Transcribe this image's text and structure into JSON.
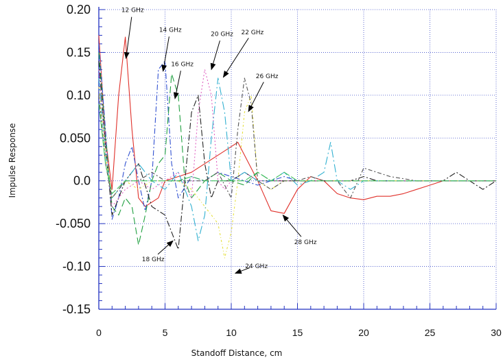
{
  "chart_data": {
    "type": "line",
    "xlabel": "Standoff Distance, cm",
    "ylabel": "Impulse Response",
    "xlim": [
      0,
      30
    ],
    "ylim": [
      -0.15,
      0.2
    ],
    "grid": true,
    "x_ticks": [
      "0",
      "5",
      "10",
      "15",
      "20",
      "25",
      "30"
    ],
    "y_ticks": [
      "-0.15",
      "-0.10",
      "-0.050",
      "0.0",
      "0.050",
      "0.10",
      "0.15",
      "0.20"
    ],
    "series": [
      {
        "name": "12 GHz",
        "color": "#e0302a",
        "dash": "solid",
        "x": [
          0,
          0.5,
          1,
          1.5,
          2,
          2.5,
          3,
          3.5,
          4,
          4.5,
          5,
          6,
          7,
          8,
          9,
          10,
          10.5,
          11,
          12,
          13,
          14,
          15,
          16,
          17,
          18,
          19,
          20,
          21,
          22,
          23,
          24,
          25,
          26,
          27,
          28,
          29,
          30
        ],
        "y": [
          0.17,
          0.05,
          -0.01,
          0.1,
          0.168,
          0.06,
          -0.02,
          -0.03,
          -0.025,
          -0.02,
          0.0,
          0.005,
          0.01,
          0.02,
          0.03,
          0.04,
          0.045,
          0.03,
          0.0,
          -0.035,
          -0.038,
          -0.01,
          0.005,
          0.0,
          -0.015,
          -0.02,
          -0.022,
          -0.018,
          -0.018,
          -0.015,
          -0.01,
          -0.005,
          0.0,
          0.0,
          0.0,
          0.0,
          0.0
        ]
      },
      {
        "name": "14 GHz",
        "color": "#3050d0",
        "dash": "8,3,2,3",
        "x": [
          0,
          0.5,
          1,
          1.5,
          2,
          2.5,
          3,
          3.5,
          4,
          4.5,
          5,
          5.5,
          6,
          7,
          8,
          9,
          10,
          11,
          12,
          13,
          14,
          15,
          16,
          18,
          20,
          22,
          24,
          26,
          28,
          30
        ],
        "y": [
          0.16,
          0.06,
          -0.045,
          -0.02,
          0.02,
          0.04,
          0.0,
          -0.035,
          0.0,
          0.13,
          0.14,
          0.02,
          -0.02,
          0.005,
          0.0,
          0.01,
          0.005,
          0.0,
          -0.005,
          0.0,
          0.005,
          0.0,
          0.0,
          0.0,
          0.0,
          0.0,
          0.0,
          0.0,
          0.0,
          0.0
        ]
      },
      {
        "name": "16 GHz",
        "color": "#20a040",
        "dash": "10,5",
        "x": [
          0,
          0.5,
          1,
          1.5,
          2,
          2.5,
          3,
          3.5,
          4,
          4.5,
          5,
          5.5,
          6,
          6.5,
          7,
          8,
          9,
          10,
          11,
          12,
          13,
          14,
          15,
          17,
          19,
          21,
          23,
          25,
          27,
          30
        ],
        "y": [
          0.15,
          0.05,
          -0.03,
          -0.04,
          -0.02,
          -0.03,
          -0.075,
          -0.04,
          0.0,
          0.02,
          0.03,
          0.125,
          0.1,
          0.0,
          -0.02,
          0.0,
          0.01,
          0.0,
          -0.005,
          0.01,
          0.0,
          0.0,
          0.0,
          0.0,
          0.0,
          0.0,
          0.0,
          0.0,
          0.0,
          0.0
        ]
      },
      {
        "name": "18 GHz",
        "color": "#222222",
        "dash": "9,3,2,3",
        "x": [
          0,
          0.5,
          1,
          1.5,
          2,
          3,
          4,
          5,
          5.5,
          6,
          6.5,
          7,
          7.5,
          8,
          8.5,
          9,
          10,
          11,
          12,
          13,
          14,
          15,
          16,
          17,
          18,
          19,
          20,
          21,
          22,
          23,
          24,
          25,
          26,
          27,
          28,
          29,
          30
        ],
        "y": [
          0.14,
          0.04,
          -0.04,
          -0.02,
          0.0,
          0.02,
          -0.03,
          -0.04,
          -0.06,
          -0.08,
          0.0,
          0.08,
          0.1,
          0.02,
          -0.02,
          0.0,
          0.0,
          0.01,
          0.0,
          0.0,
          0.0,
          0.0,
          0.0,
          0.0,
          0.0,
          0.0,
          0.005,
          0.0,
          0.0,
          0.0,
          0.0,
          0.0,
          0.0,
          0.01,
          0.0,
          -0.01,
          0.0
        ]
      },
      {
        "name": "20 GHz",
        "color": "#e060c0",
        "dash": "2,3",
        "x": [
          0,
          0.5,
          1,
          2,
          3,
          4,
          5,
          6,
          7,
          7.5,
          8,
          8.5,
          9,
          9.5,
          10,
          11,
          12,
          13,
          14,
          15,
          16,
          18,
          20,
          22,
          24,
          26,
          28,
          30
        ],
        "y": [
          0.13,
          0.04,
          -0.03,
          -0.01,
          0.0,
          -0.01,
          0.0,
          0.01,
          -0.02,
          0.08,
          0.13,
          0.1,
          0.0,
          -0.01,
          0.0,
          0.01,
          0.0,
          0.0,
          0.0,
          0.0,
          0.0,
          0.0,
          0.0,
          0.0,
          0.0,
          0.0,
          0.0,
          0.0
        ]
      },
      {
        "name": "22 GHz",
        "color": "#30b0d0",
        "dash": "12,4,2,4",
        "x": [
          0,
          0.5,
          1,
          2,
          3,
          4,
          5,
          6,
          7,
          7.5,
          8,
          8.5,
          9,
          9.5,
          10,
          11,
          12,
          13,
          14,
          15,
          16,
          17,
          17.5,
          18,
          19,
          20,
          21,
          22,
          24,
          26,
          28,
          30
        ],
        "y": [
          0.12,
          0.03,
          -0.02,
          0.0,
          0.02,
          0.0,
          -0.01,
          0.01,
          -0.03,
          -0.07,
          -0.04,
          0.05,
          0.12,
          0.08,
          0.0,
          0.01,
          0.0,
          0.0,
          0.01,
          -0.005,
          0.0,
          0.01,
          0.045,
          0.0,
          -0.01,
          0.0,
          0.0,
          0.0,
          0.0,
          0.0,
          0.0,
          0.0
        ]
      },
      {
        "name": "24 GHz",
        "color": "#e6e040",
        "dash": "3,3,1,3",
        "x": [
          0,
          0.5,
          1,
          2,
          3,
          4,
          5,
          6,
          7,
          8,
          9,
          9.5,
          10,
          10.5,
          11,
          11.5,
          12,
          13,
          14,
          15,
          16,
          18,
          20,
          22,
          24,
          26,
          28,
          30
        ],
        "y": [
          0.11,
          0.03,
          -0.02,
          0.0,
          -0.01,
          0.0,
          0.0,
          0.0,
          -0.01,
          -0.03,
          -0.05,
          -0.09,
          -0.06,
          0.0,
          0.08,
          0.1,
          0.0,
          -0.01,
          0.0,
          0.0,
          0.0,
          0.0,
          0.0,
          0.0,
          0.0,
          0.0,
          0.0,
          0.0
        ]
      },
      {
        "name": "26 GHz",
        "color": "#555555",
        "dash": "6,3,2,3",
        "x": [
          0,
          0.5,
          1,
          2,
          3,
          4,
          5,
          6,
          7,
          8,
          9,
          10,
          10.5,
          11,
          11.5,
          12,
          13,
          14,
          15,
          16,
          17,
          18,
          19,
          20,
          22,
          24,
          26,
          28,
          30
        ],
        "y": [
          0.1,
          0.02,
          -0.02,
          0.0,
          0.0,
          0.01,
          0.0,
          0.0,
          0.0,
          0.0,
          0.01,
          -0.02,
          0.06,
          0.12,
          0.09,
          0.0,
          -0.01,
          0.0,
          0.0,
          0.005,
          0.0,
          0.0,
          -0.02,
          0.015,
          0.005,
          0.0,
          0.0,
          0.0,
          0.0
        ]
      },
      {
        "name": "28 GHz",
        "color": "#40c060",
        "dash": "10,3",
        "x": [
          0,
          0.5,
          1,
          2,
          3,
          4,
          5,
          6,
          7,
          8,
          9,
          10,
          11,
          12,
          13,
          14,
          15,
          16,
          17,
          18,
          19,
          20,
          22,
          24,
          26,
          28,
          30
        ],
        "y": [
          0.09,
          0.02,
          -0.015,
          0.0,
          0.0,
          0.0,
          0.0,
          0.0,
          0.005,
          0.0,
          0.0,
          0.0,
          0.0,
          0.01,
          0.0,
          0.01,
          0.0,
          0.0,
          0.0,
          0.0,
          0.0,
          0.0,
          0.0,
          0.0,
          0.0,
          0.0,
          0.0
        ]
      }
    ],
    "annotations": [
      {
        "text": "12 GHz",
        "x": 2.55,
        "y": 0.197,
        "ax": 2.05,
        "ay": 0.143
      },
      {
        "text": "14 GHz",
        "x": 5.4,
        "y": 0.174,
        "ax": 4.85,
        "ay": 0.128
      },
      {
        "text": "16 GHz",
        "x": 6.3,
        "y": 0.134,
        "ax": 5.75,
        "ay": 0.096
      },
      {
        "text": "20 GHz",
        "x": 9.3,
        "y": 0.169,
        "ax": 8.5,
        "ay": 0.13
      },
      {
        "text": "22 GHz",
        "x": 11.6,
        "y": 0.171,
        "ax": 9.4,
        "ay": 0.121
      },
      {
        "text": "26 GHz",
        "x": 12.7,
        "y": 0.12,
        "ax": 11.3,
        "ay": 0.081
      },
      {
        "text": "28 GHz",
        "x": 15.6,
        "y": -0.074,
        "ax": 13.9,
        "ay": -0.04
      },
      {
        "text": "18 GHz",
        "x": 4.1,
        "y": -0.094,
        "ax": 5.6,
        "ay": -0.07
      },
      {
        "text": "24  GHz",
        "x": 11.9,
        "y": -0.102,
        "ax": 10.3,
        "ay": -0.108
      }
    ]
  }
}
